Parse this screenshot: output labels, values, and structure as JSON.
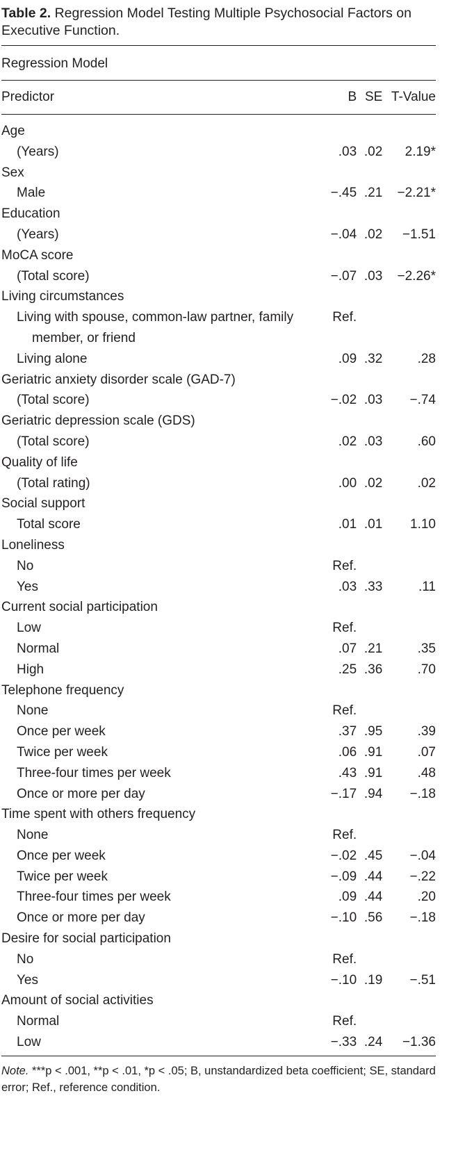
{
  "header": {
    "label": "Table 2.",
    "title": "Regression Model Testing Multiple Psychosocial Factors on Executive Function."
  },
  "table": {
    "model": "Regression Model",
    "columns": [
      "Predictor",
      "B",
      "SE",
      "T-Value"
    ],
    "groups": [
      {
        "label": "Age",
        "rows": [
          [
            "(Years)",
            ".03",
            ".02",
            "2.19*"
          ]
        ]
      },
      {
        "label": "Sex",
        "rows": [
          [
            "Male",
            "−.45",
            ".21",
            "−2.21*"
          ]
        ]
      },
      {
        "label": "Education",
        "rows": [
          [
            "(Years)",
            "−.04",
            ".02",
            "−1.51"
          ]
        ]
      },
      {
        "label": "MoCA score",
        "rows": [
          [
            "(Total score)",
            "−.07",
            ".03",
            "−2.26*"
          ]
        ]
      },
      {
        "label": "Living circumstances",
        "rows": [
          [
            "Living with spouse, common-law partner, family member, or friend",
            "Ref.",
            null,
            null
          ],
          [
            "Living alone",
            ".09",
            ".32",
            ".28"
          ]
        ]
      },
      {
        "label": "Geriatric anxiety disorder scale (GAD-7)",
        "rows": [
          [
            "(Total score)",
            "−.02",
            ".03",
            "−.74"
          ]
        ]
      },
      {
        "label": "Geriatric depression scale (GDS)",
        "rows": [
          [
            "(Total score)",
            ".02",
            ".03",
            ".60"
          ]
        ]
      },
      {
        "label": "Quality of life",
        "rows": [
          [
            "(Total rating)",
            ".00",
            ".02",
            ".02"
          ]
        ]
      },
      {
        "label": "Social support",
        "rows": [
          [
            "Total score",
            ".01",
            ".01",
            "1.10"
          ]
        ]
      },
      {
        "label": "Loneliness",
        "rows": [
          [
            "No",
            "Ref.",
            null,
            null
          ],
          [
            "Yes",
            ".03",
            ".33",
            ".11"
          ]
        ]
      },
      {
        "label": "Current social participation",
        "rows": [
          [
            "Low",
            "Ref.",
            null,
            null
          ],
          [
            "Normal",
            ".07",
            ".21",
            ".35"
          ],
          [
            "High",
            ".25",
            ".36",
            ".70"
          ]
        ]
      },
      {
        "label": "Telephone frequency",
        "rows": [
          [
            "None",
            "Ref.",
            null,
            null
          ],
          [
            "Once per week",
            ".37",
            ".95",
            ".39"
          ],
          [
            "Twice per week",
            ".06",
            ".91",
            ".07"
          ],
          [
            "Three-four times per week",
            ".43",
            ".91",
            ".48"
          ],
          [
            "Once or more per day",
            "−.17",
            ".94",
            "−.18"
          ]
        ]
      },
      {
        "label": "Time spent with others frequency",
        "rows": [
          [
            "None",
            "Ref.",
            null,
            null
          ],
          [
            "Once per week",
            "−.02",
            ".45",
            "−.04"
          ],
          [
            "Twice per week",
            "−.09",
            ".44",
            "−.22"
          ],
          [
            "Three-four times per week",
            ".09",
            ".44",
            ".20"
          ],
          [
            "Once or more per day",
            "−.10",
            ".56",
            "−.18"
          ]
        ]
      },
      {
        "label": "Desire for social participation",
        "rows": [
          [
            "No",
            "Ref.",
            null,
            null
          ],
          [
            "Yes",
            "−.10",
            ".19",
            "−.51"
          ]
        ]
      },
      {
        "label": "Amount of social activities",
        "rows": [
          [
            "Normal",
            "Ref.",
            null,
            null
          ],
          [
            "Low",
            "−.33",
            ".24",
            "−1.36"
          ]
        ]
      }
    ]
  },
  "note": {
    "label": "Note.",
    "text": "***p < .001, **p < .01, *p < .05; B, unstandardized beta coefficient; SE, standard error; Ref., reference condition."
  }
}
